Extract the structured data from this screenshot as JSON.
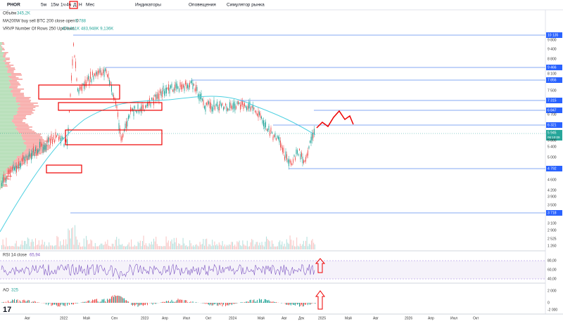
{
  "toolbar": {
    "symbol": "PHOR",
    "intervals": [
      "5м",
      "15м",
      "1ч",
      "4ч",
      "Д",
      "Н",
      "Мес"
    ],
    "buttons": [
      "Индикаторы",
      "Оповещения",
      "Симулятор рынка"
    ]
  },
  "legend": {
    "volume": "Объём",
    "volume_value": "345,2K",
    "ma": "MA200W buy sell BTC 200 close open 0",
    "ma_value": "5 788",
    "vrvp": "VRVP Number Of Rows 250 Up/Down",
    "vrvp_value": "471,611K 483,948K 9,136K"
  },
  "levels": [
    "10 135",
    "9 466",
    "7 856",
    "7 315",
    "6 847",
    "6 321",
    "4 792",
    "3 718"
  ],
  "last_price": {
    "price": "5 945",
    "countdown": "06:10:09"
  },
  "price_scale": [
    "9 800",
    "9 400",
    "8 800",
    "8 100",
    "7 500",
    "6 700",
    "5 800",
    "5 400",
    "5 000",
    "4 600",
    "4 200",
    "3 900",
    "3 500",
    "3 100",
    "2 900",
    "2 525",
    "1 260"
  ],
  "rsi": {
    "title": "RSI 14 close",
    "value": "65,94",
    "scale": [
      "80,00",
      "60,00",
      "40,00"
    ]
  },
  "ao": {
    "title": "AO",
    "value": "325",
    "scale": [
      "2 000",
      "0",
      "-2 000"
    ]
  },
  "time_axis": [
    "Авг",
    "2022",
    "Май",
    "Сен",
    "2023",
    "Апр",
    "Июл",
    "Окт",
    "2024",
    "Май",
    "Авг",
    "Дек",
    "2025",
    "Май",
    "Авг",
    "2026",
    "Апр",
    "Июл",
    "Окт"
  ]
}
